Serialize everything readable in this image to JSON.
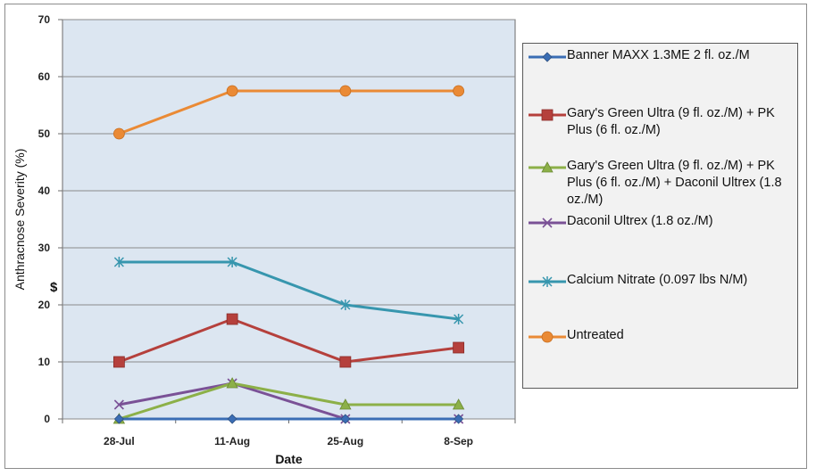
{
  "chart_data": {
    "type": "line",
    "title": "",
    "xlabel": "Date",
    "ylabel": "Anthracnose Severity (%)",
    "ylim": [
      0,
      70
    ],
    "yticks": [
      0,
      10,
      20,
      30,
      40,
      50,
      60,
      70
    ],
    "categories": [
      "28-Jul",
      "11-Aug",
      "25-Aug",
      "8-Sep"
    ],
    "grid": "horizontal",
    "legend_position": "right",
    "annotation": "$",
    "series": [
      {
        "name": "Banner MAXX 1.3ME 2 fl. oz./M",
        "color": "#3a6db4",
        "marker": "diamond",
        "values": [
          0,
          0,
          0,
          0
        ]
      },
      {
        "name": "Gary's Green Ultra (9 fl. oz./M) + PK Plus (6 fl. oz./M)",
        "color": "#b5403c",
        "marker": "square",
        "values": [
          10,
          17.5,
          10,
          12.5
        ]
      },
      {
        "name": "Gary's Green Ultra (9 fl. oz./M) + PK Plus (6 fl. oz./M) + Daconil Ultrex (1.8 oz./M)",
        "color": "#8cb048",
        "marker": "triangle",
        "values": [
          0,
          6.25,
          2.5,
          2.5
        ]
      },
      {
        "name": "Daconil Ultrex (1.8 oz./M)",
        "color": "#7a5196",
        "marker": "x",
        "values": [
          2.5,
          6.25,
          0,
          0
        ]
      },
      {
        "name": "Calcium Nitrate (0.097 lbs N/M)",
        "color": "#3796ae",
        "marker": "star",
        "values": [
          27.5,
          27.5,
          20,
          17.5
        ]
      },
      {
        "name": "Untreated",
        "color": "#ea8a35",
        "marker": "circle",
        "values": [
          50,
          57.5,
          57.5,
          57.5
        ]
      }
    ]
  }
}
